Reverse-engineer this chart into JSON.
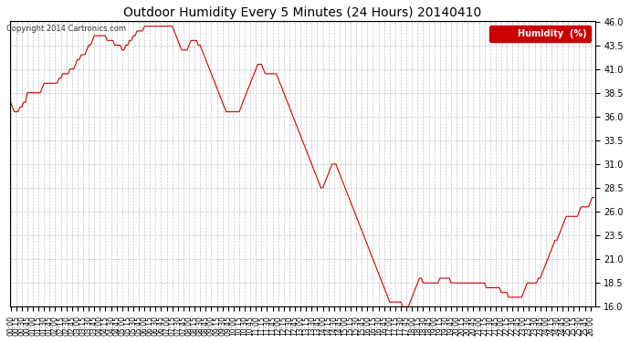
{
  "title": "Outdoor Humidity Every 5 Minutes (24 Hours) 20140410",
  "copyright": "Copyright 2014 Cartronics.com",
  "legend_label": "Humidity  (%)",
  "line_color": "#cc0000",
  "legend_bg": "#cc0000",
  "legend_text_color": "#ffffff",
  "background_color": "#ffffff",
  "grid_color": "#aaaaaa",
  "title_color": "#000000",
  "ylim": [
    16.0,
    46.0
  ],
  "yticks": [
    16.0,
    18.5,
    21.0,
    23.5,
    26.0,
    28.5,
    31.0,
    33.5,
    36.0,
    38.5,
    41.0,
    43.5,
    46.0
  ],
  "humidity_values": [
    37.5,
    37.0,
    36.5,
    36.5,
    36.5,
    37.0,
    37.0,
    37.5,
    37.5,
    38.5,
    38.5,
    38.5,
    38.5,
    38.5,
    38.5,
    38.5,
    38.5,
    39.0,
    39.5,
    39.5,
    39.5,
    39.5,
    39.5,
    39.5,
    39.5,
    39.5,
    40.0,
    40.0,
    40.5,
    40.5,
    40.5,
    40.5,
    41.0,
    41.0,
    41.0,
    41.5,
    42.0,
    42.0,
    42.5,
    42.5,
    42.5,
    43.0,
    43.5,
    43.5,
    44.0,
    44.5,
    44.5,
    44.5,
    44.5,
    44.5,
    44.5,
    44.5,
    44.0,
    44.0,
    44.0,
    44.0,
    43.5,
    43.5,
    43.5,
    43.5,
    43.0,
    43.0,
    43.5,
    43.5,
    44.0,
    44.0,
    44.5,
    44.5,
    45.0,
    45.0,
    45.0,
    45.0,
    45.5,
    45.5,
    45.5,
    45.5,
    45.5,
    45.5,
    45.5,
    45.5,
    45.5,
    45.5,
    45.5,
    45.5,
    45.5,
    45.5,
    45.5,
    45.5,
    45.0,
    44.5,
    44.0,
    43.5,
    43.0,
    43.0,
    43.0,
    43.0,
    43.5,
    44.0,
    44.0,
    44.0,
    44.0,
    43.5,
    43.5,
    43.0,
    42.5,
    42.0,
    41.5,
    41.0,
    40.5,
    40.0,
    39.5,
    39.0,
    38.5,
    38.0,
    37.5,
    37.0,
    36.5,
    36.5,
    36.5,
    36.5,
    36.5,
    36.5,
    36.5,
    36.5,
    37.0,
    37.5,
    38.0,
    38.5,
    39.0,
    39.5,
    40.0,
    40.5,
    41.0,
    41.5,
    41.5,
    41.5,
    41.0,
    40.5,
    40.5,
    40.5,
    40.5,
    40.5,
    40.5,
    40.5,
    40.0,
    39.5,
    39.0,
    38.5,
    38.0,
    37.5,
    37.0,
    36.5,
    36.0,
    35.5,
    35.0,
    34.5,
    34.0,
    33.5,
    33.0,
    32.5,
    32.0,
    31.5,
    31.0,
    30.5,
    30.0,
    29.5,
    29.0,
    28.5,
    28.5,
    29.0,
    29.5,
    30.0,
    30.5,
    31.0,
    31.0,
    31.0,
    30.5,
    30.0,
    29.5,
    29.0,
    28.5,
    28.0,
    27.5,
    27.0,
    26.5,
    26.0,
    25.5,
    25.0,
    24.5,
    24.0,
    23.5,
    23.0,
    22.5,
    22.0,
    21.5,
    21.0,
    20.5,
    20.0,
    19.5,
    19.0,
    18.5,
    18.0,
    17.5,
    17.0,
    16.5,
    16.5,
    16.5,
    16.5,
    16.5,
    16.5,
    16.5,
    16.0,
    16.0,
    16.0,
    16.0,
    16.5,
    17.0,
    17.5,
    18.0,
    18.5,
    19.0,
    19.0,
    18.5,
    18.5,
    18.5,
    18.5,
    18.5,
    18.5,
    18.5,
    18.5,
    18.5,
    19.0,
    19.0,
    19.0,
    19.0,
    19.0,
    19.0,
    18.5,
    18.5,
    18.5,
    18.5,
    18.5,
    18.5,
    18.5,
    18.5,
    18.5,
    18.5,
    18.5,
    18.5,
    18.5,
    18.5,
    18.5,
    18.5,
    18.5,
    18.5,
    18.5,
    18.0,
    18.0,
    18.0,
    18.0,
    18.0,
    18.0,
    18.0,
    18.0,
    17.5,
    17.5,
    17.5,
    17.5,
    17.0,
    17.0,
    17.0,
    17.0,
    17.0,
    17.0,
    17.0,
    17.0,
    17.5,
    18.0,
    18.5,
    18.5,
    18.5,
    18.5,
    18.5,
    18.5,
    19.0,
    19.0,
    19.5,
    20.0,
    20.5,
    21.0,
    21.5,
    22.0,
    22.5,
    23.0,
    23.0,
    23.5,
    24.0,
    24.5,
    25.0,
    25.5,
    25.5,
    25.5,
    25.5,
    25.5,
    25.5,
    25.5,
    26.0,
    26.5,
    26.5,
    26.5,
    26.5,
    26.5,
    27.0,
    27.5,
    27.5
  ],
  "figsize": [
    6.9,
    3.75
  ],
  "dpi": 100
}
